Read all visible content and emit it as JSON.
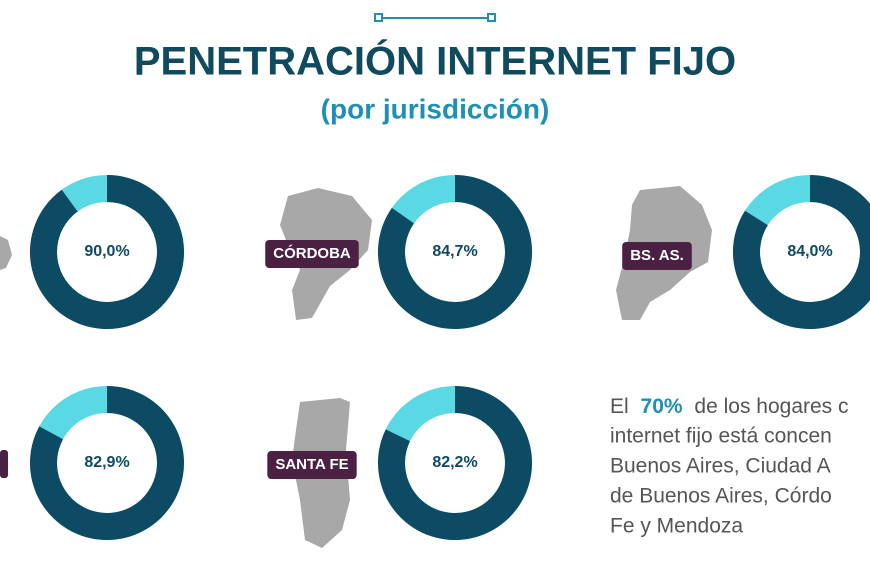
{
  "header": {
    "title": "PENETRACIÓN INTERNET FIJO",
    "subtitle": "(por jurisdicción)"
  },
  "chart_data": [
    {
      "type": "donut",
      "values": [
        90.0
      ],
      "value_labels": [
        "90,0%"
      ],
      "color": "#0d4a63",
      "rest_color": "#5ad8e4"
    },
    {
      "type": "donut",
      "name": "CÓRDOBA",
      "values": [
        84.7
      ],
      "value_labels": [
        "84,7%"
      ],
      "color": "#0d4a63",
      "rest_color": "#5ad8e4"
    },
    {
      "type": "donut",
      "name": "BS. AS.",
      "values": [
        84.0
      ],
      "value_labels": [
        "84,0%"
      ],
      "color": "#0d4a63",
      "rest_color": "#5ad8e4"
    },
    {
      "type": "donut",
      "values": [
        82.9
      ],
      "value_labels": [
        "82,9%"
      ],
      "color": "#0d4a63",
      "rest_color": "#5ad8e4"
    },
    {
      "type": "donut",
      "name": "SANTA FE",
      "values": [
        82.2
      ],
      "value_labels": [
        "82,2%"
      ],
      "color": "#0d4a63",
      "rest_color": "#5ad8e4"
    }
  ],
  "note": {
    "first_line": [
      "El",
      "70%",
      "de los hogares c"
    ],
    "lines": [
      "internet fijo está concen",
      "Buenos Aires, Ciudad A",
      "de Buenos Aires, Córdo",
      "Fe y Mendoza"
    ]
  }
}
